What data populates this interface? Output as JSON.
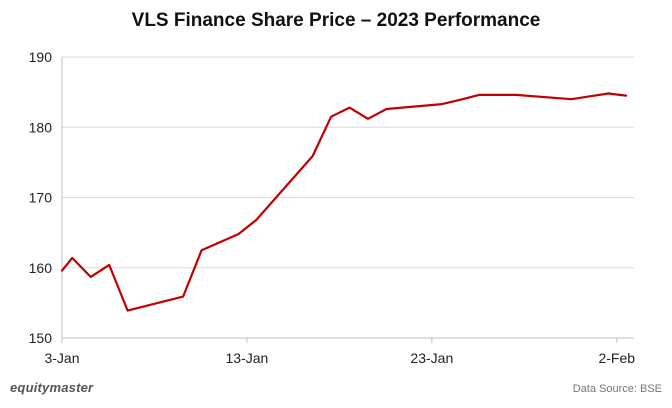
{
  "title": "VLS Finance Share Price – 2023 Performance",
  "branding": "equitymaster",
  "source": "Data Source: BSE",
  "chart_data": {
    "type": "line",
    "title": "VLS Finance Share Price – 2023 Performance",
    "xlabel": "",
    "ylabel": "",
    "x_ticks": [
      {
        "label": "3-Jan",
        "day": 0
      },
      {
        "label": "13-Jan",
        "day": 10
      },
      {
        "label": "23-Jan",
        "day": 20
      },
      {
        "label": "2-Feb",
        "day": 30
      }
    ],
    "x_range_days": [
      0,
      30.5
    ],
    "ylim": [
      150,
      190
    ],
    "y_ticks": [
      150,
      160,
      170,
      180,
      190
    ],
    "grid": {
      "horizontal": true,
      "vertical": false
    },
    "line_color": "#c00000",
    "series": [
      {
        "x": [
          "3-Jan",
          "4-Jan",
          "5-Jan",
          "6-Jan",
          "7-Jan",
          "10-Jan",
          "11-Jan",
          "12-Jan",
          "13-Jan",
          "16-Jan",
          "17-Jan",
          "18-Jan",
          "19-Jan",
          "20-Jan",
          "23-Jan",
          "24-Jan",
          "25-Jan",
          "27-Jan",
          "30-Jan",
          "31-Jan",
          "1-Feb",
          "2-Feb"
        ],
        "day": [
          0,
          0.55,
          1.55,
          2.55,
          3.55,
          6.55,
          7.55,
          9.55,
          10.5,
          13.55,
          14.55,
          15.55,
          16.55,
          17.55,
          20.55,
          21.5,
          22.55,
          24.55,
          27.55,
          28.55,
          29.55,
          30.5
        ],
        "values": [
          159.6,
          161.4,
          158.7,
          160.4,
          153.9,
          155.9,
          162.5,
          164.8,
          166.8,
          175.9,
          181.5,
          182.8,
          181.2,
          182.6,
          183.3,
          183.9,
          184.6,
          184.6,
          184.0,
          184.4,
          184.8,
          184.5
        ]
      }
    ]
  }
}
